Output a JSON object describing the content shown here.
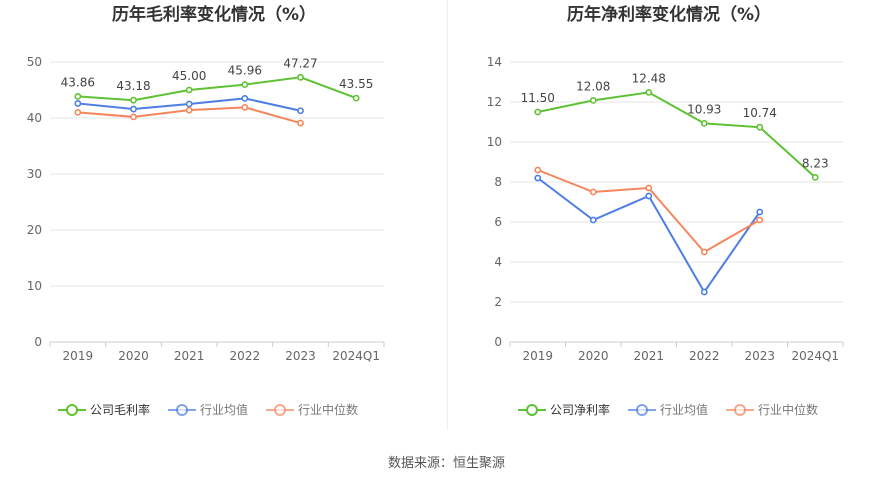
{
  "source": "数据来源：恒生聚源",
  "chart_data": [
    {
      "type": "line",
      "title": "历年毛利率变化情况（%）",
      "categories": [
        "2019",
        "2020",
        "2021",
        "2022",
        "2023",
        "2024Q1"
      ],
      "ylim": [
        0,
        50
      ],
      "yticks": [
        0,
        10,
        20,
        30,
        40,
        50
      ],
      "grid": true,
      "legend_position": "bottom",
      "series": [
        {
          "name": "公司毛利率",
          "color": "#5fc234",
          "values": [
            43.86,
            43.18,
            45.0,
            45.96,
            47.27,
            43.55
          ],
          "labeled": true
        },
        {
          "name": "行业均值",
          "color": "#4c7ee4",
          "values": [
            42.6,
            41.6,
            42.5,
            43.5,
            41.3,
            null
          ],
          "labeled": false
        },
        {
          "name": "行业中位数",
          "color": "#f5865c",
          "values": [
            41.0,
            40.2,
            41.4,
            41.9,
            39.1,
            null
          ],
          "labeled": false
        }
      ]
    },
    {
      "type": "line",
      "title": "历年净利率变化情况（%）",
      "categories": [
        "2019",
        "2020",
        "2021",
        "2022",
        "2023",
        "2024Q1"
      ],
      "ylim": [
        0,
        14
      ],
      "yticks": [
        0,
        2,
        4,
        6,
        8,
        10,
        12,
        14
      ],
      "grid": true,
      "legend_position": "bottom",
      "series": [
        {
          "name": "公司净利率",
          "color": "#5fc234",
          "values": [
            11.5,
            12.08,
            12.48,
            10.93,
            10.74,
            8.23
          ],
          "labeled": true
        },
        {
          "name": "行业均值",
          "color": "#4c7ee4",
          "values": [
            8.2,
            6.1,
            7.3,
            2.5,
            6.5,
            null
          ],
          "labeled": false
        },
        {
          "name": "行业中位数",
          "color": "#f5865c",
          "values": [
            8.6,
            7.5,
            7.7,
            4.5,
            6.1,
            null
          ],
          "labeled": false
        }
      ]
    }
  ]
}
